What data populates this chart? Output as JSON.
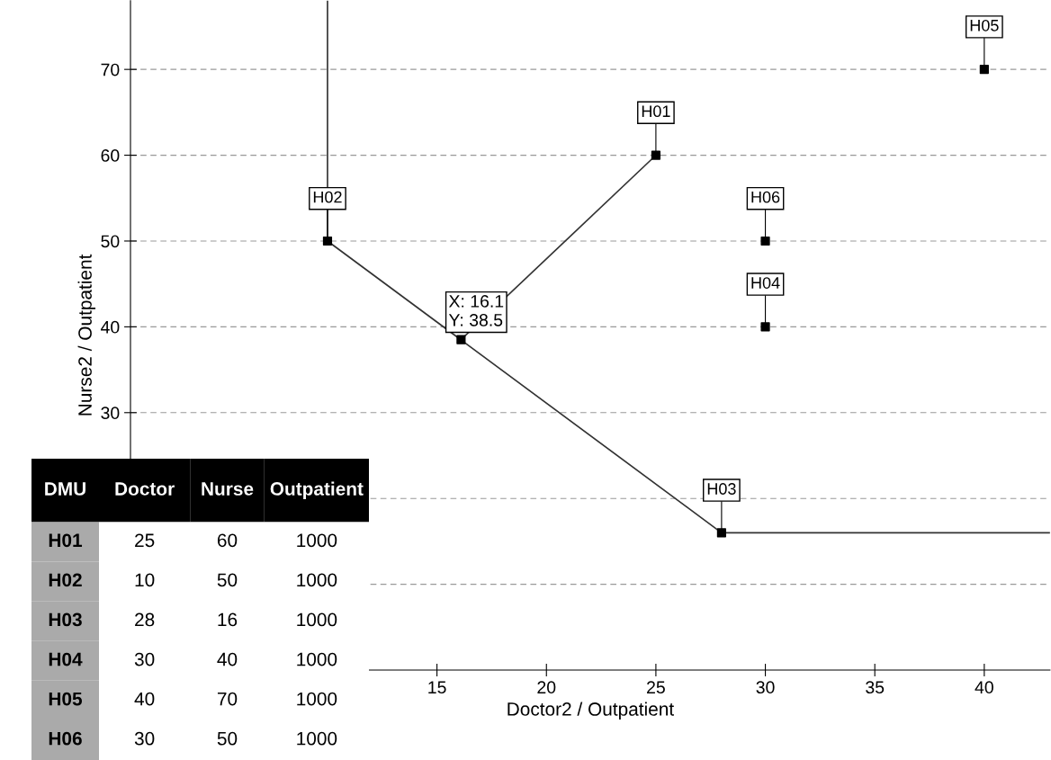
{
  "chart_data": {
    "type": "scatter",
    "xlabel": "Doctor2 / Outpatient",
    "ylabel": "Nurse2 / Outpatient",
    "xlim": [
      1,
      43
    ],
    "ylim": [
      0,
      78
    ],
    "xticks": [
      15,
      20,
      25,
      30,
      35,
      40
    ],
    "yticks": [
      {
        "value": 10,
        "label": null
      },
      {
        "value": 20,
        "label": null
      },
      30,
      40,
      50,
      60,
      70
    ],
    "grid": "y",
    "series": [
      {
        "type": "line",
        "color": "#333333",
        "x": [
          10,
          10,
          28,
          43
        ],
        "values": [
          78,
          50,
          16,
          16
        ],
        "marker": "none"
      },
      {
        "type": "line",
        "color": "#333333",
        "x": [
          16.1,
          25
        ],
        "values": [
          38.5,
          60
        ],
        "marker": "none"
      },
      {
        "color": "#000000",
        "x": [
          16.1
        ],
        "values": [
          38.5
        ],
        "marker": "square"
      },
      {
        "color": "#000000",
        "x": [
          25,
          10,
          28,
          30,
          40,
          30
        ],
        "values": [
          60,
          50,
          16,
          40,
          70,
          50
        ],
        "marker": "square",
        "value_labels": [
          "H01",
          "H02",
          "H03",
          "H04",
          "H05",
          "H06"
        ]
      }
    ],
    "annotations": [
      {
        "text": "X: 16.1\nY: 38.5",
        "x": 16.1,
        "y": 38.5
      },
      "DMU",
      "Doctor",
      "Nurse",
      "Outpatient",
      "H01",
      "25",
      "60",
      "1000",
      "H02",
      "10",
      "50",
      "1000",
      "H03",
      "28",
      "16",
      "1000",
      "H04",
      "30",
      "40",
      "1000",
      "H05",
      "40",
      "70",
      "1000",
      "H06",
      "30",
      "50",
      "1000"
    ]
  }
}
